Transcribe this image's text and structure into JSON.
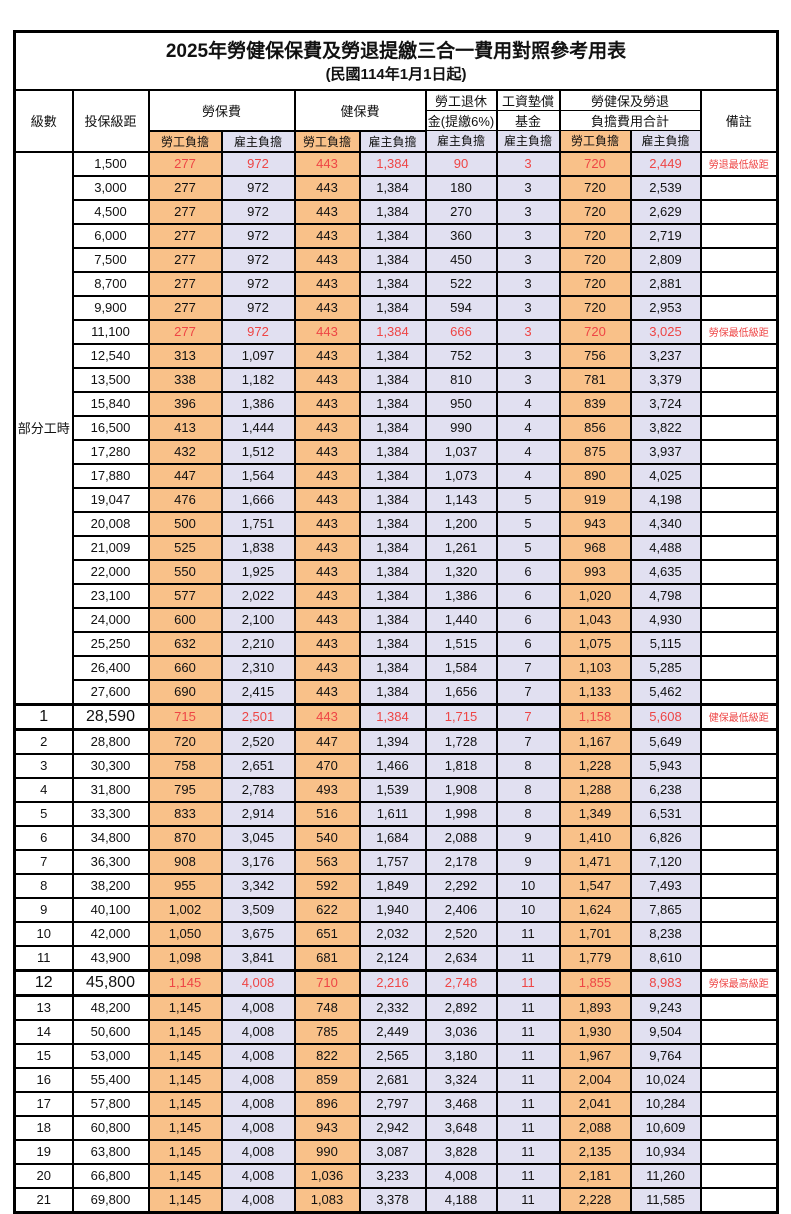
{
  "title": "2025年勞健保保費及勞退提繳三合一費用對照參考用表",
  "subtitle": "(民國114年1月1日起)",
  "colors": {
    "employee_column_bg": "#f9c189",
    "employer_column_bg": "#e1e0f1",
    "highlight_red": "#ee4545",
    "grid": "#000000"
  },
  "table": {
    "part_time_label": "部分工時",
    "header": {
      "level": "級數",
      "bracket": "投保級距",
      "labor_ins": "勞保費",
      "health_ins": "健保費",
      "pension_line1": "勞工退休",
      "pension_line2": "金(提繳6%)",
      "wage_fund_line1": "工資墊償",
      "wage_fund_line2": "基金",
      "total_line1": "勞健保及勞退",
      "total_line2": "負擔費用合計",
      "remark": "備註",
      "employee": "勞工負擔",
      "employer": "雇主負擔"
    },
    "value_columns": [
      "勞保費-勞工負擔",
      "勞保費-雇主負擔",
      "健保費-勞工負擔",
      "健保費-雇主負擔",
      "勞工退休金(提繳6%)-雇主負擔",
      "工資墊償基金-雇主負擔",
      "合計-勞工負擔",
      "合計-雇主負擔"
    ],
    "rows": [
      {
        "level": "",
        "bracket": "1,500",
        "v": [
          "277",
          "972",
          "443",
          "1,384",
          "90",
          "3",
          "720",
          "2,449"
        ],
        "remark": "勞退最低級距",
        "red": true
      },
      {
        "level": "",
        "bracket": "3,000",
        "v": [
          "277",
          "972",
          "443",
          "1,384",
          "180",
          "3",
          "720",
          "2,539"
        ]
      },
      {
        "level": "",
        "bracket": "4,500",
        "v": [
          "277",
          "972",
          "443",
          "1,384",
          "270",
          "3",
          "720",
          "2,629"
        ]
      },
      {
        "level": "",
        "bracket": "6,000",
        "v": [
          "277",
          "972",
          "443",
          "1,384",
          "360",
          "3",
          "720",
          "2,719"
        ]
      },
      {
        "level": "",
        "bracket": "7,500",
        "v": [
          "277",
          "972",
          "443",
          "1,384",
          "450",
          "3",
          "720",
          "2,809"
        ]
      },
      {
        "level": "",
        "bracket": "8,700",
        "v": [
          "277",
          "972",
          "443",
          "1,384",
          "522",
          "3",
          "720",
          "2,881"
        ]
      },
      {
        "level": "",
        "bracket": "9,900",
        "v": [
          "277",
          "972",
          "443",
          "1,384",
          "594",
          "3",
          "720",
          "2,953"
        ]
      },
      {
        "level": "",
        "bracket": "11,100",
        "v": [
          "277",
          "972",
          "443",
          "1,384",
          "666",
          "3",
          "720",
          "3,025"
        ],
        "remark": "勞保最低級距",
        "red": true
      },
      {
        "level": "",
        "bracket": "12,540",
        "v": [
          "313",
          "1,097",
          "443",
          "1,384",
          "752",
          "3",
          "756",
          "3,237"
        ]
      },
      {
        "level": "",
        "bracket": "13,500",
        "v": [
          "338",
          "1,182",
          "443",
          "1,384",
          "810",
          "3",
          "781",
          "3,379"
        ]
      },
      {
        "level": "",
        "bracket": "15,840",
        "v": [
          "396",
          "1,386",
          "443",
          "1,384",
          "950",
          "4",
          "839",
          "3,724"
        ]
      },
      {
        "level": "",
        "bracket": "16,500",
        "v": [
          "413",
          "1,444",
          "443",
          "1,384",
          "990",
          "4",
          "856",
          "3,822"
        ]
      },
      {
        "level": "",
        "bracket": "17,280",
        "v": [
          "432",
          "1,512",
          "443",
          "1,384",
          "1,037",
          "4",
          "875",
          "3,937"
        ]
      },
      {
        "level": "",
        "bracket": "17,880",
        "v": [
          "447",
          "1,564",
          "443",
          "1,384",
          "1,073",
          "4",
          "890",
          "4,025"
        ]
      },
      {
        "level": "",
        "bracket": "19,047",
        "v": [
          "476",
          "1,666",
          "443",
          "1,384",
          "1,143",
          "5",
          "919",
          "4,198"
        ]
      },
      {
        "level": "",
        "bracket": "20,008",
        "v": [
          "500",
          "1,751",
          "443",
          "1,384",
          "1,200",
          "5",
          "943",
          "4,340"
        ]
      },
      {
        "level": "",
        "bracket": "21,009",
        "v": [
          "525",
          "1,838",
          "443",
          "1,384",
          "1,261",
          "5",
          "968",
          "4,488"
        ]
      },
      {
        "level": "",
        "bracket": "22,000",
        "v": [
          "550",
          "1,925",
          "443",
          "1,384",
          "1,320",
          "6",
          "993",
          "4,635"
        ]
      },
      {
        "level": "",
        "bracket": "23,100",
        "v": [
          "577",
          "2,022",
          "443",
          "1,384",
          "1,386",
          "6",
          "1,020",
          "4,798"
        ]
      },
      {
        "level": "",
        "bracket": "24,000",
        "v": [
          "600",
          "2,100",
          "443",
          "1,384",
          "1,440",
          "6",
          "1,043",
          "4,930"
        ]
      },
      {
        "level": "",
        "bracket": "25,250",
        "v": [
          "632",
          "2,210",
          "443",
          "1,384",
          "1,515",
          "6",
          "1,075",
          "5,115"
        ]
      },
      {
        "level": "",
        "bracket": "26,400",
        "v": [
          "660",
          "2,310",
          "443",
          "1,384",
          "1,584",
          "7",
          "1,103",
          "5,285"
        ]
      },
      {
        "level": "",
        "bracket": "27,600",
        "v": [
          "690",
          "2,415",
          "443",
          "1,384",
          "1,656",
          "7",
          "1,133",
          "5,462"
        ]
      },
      {
        "level": "1",
        "bracket": "28,590",
        "v": [
          "715",
          "2,501",
          "443",
          "1,384",
          "1,715",
          "7",
          "1,158",
          "5,608"
        ],
        "remark": "健保最低級距",
        "red": true,
        "big": true,
        "emph": true
      },
      {
        "level": "2",
        "bracket": "28,800",
        "v": [
          "720",
          "2,520",
          "447",
          "1,394",
          "1,728",
          "7",
          "1,167",
          "5,649"
        ]
      },
      {
        "level": "3",
        "bracket": "30,300",
        "v": [
          "758",
          "2,651",
          "470",
          "1,466",
          "1,818",
          "8",
          "1,228",
          "5,943"
        ]
      },
      {
        "level": "4",
        "bracket": "31,800",
        "v": [
          "795",
          "2,783",
          "493",
          "1,539",
          "1,908",
          "8",
          "1,288",
          "6,238"
        ]
      },
      {
        "level": "5",
        "bracket": "33,300",
        "v": [
          "833",
          "2,914",
          "516",
          "1,611",
          "1,998",
          "8",
          "1,349",
          "6,531"
        ]
      },
      {
        "level": "6",
        "bracket": "34,800",
        "v": [
          "870",
          "3,045",
          "540",
          "1,684",
          "2,088",
          "9",
          "1,410",
          "6,826"
        ]
      },
      {
        "level": "7",
        "bracket": "36,300",
        "v": [
          "908",
          "3,176",
          "563",
          "1,757",
          "2,178",
          "9",
          "1,471",
          "7,120"
        ]
      },
      {
        "level": "8",
        "bracket": "38,200",
        "v": [
          "955",
          "3,342",
          "592",
          "1,849",
          "2,292",
          "10",
          "1,547",
          "7,493"
        ]
      },
      {
        "level": "9",
        "bracket": "40,100",
        "v": [
          "1,002",
          "3,509",
          "622",
          "1,940",
          "2,406",
          "10",
          "1,624",
          "7,865"
        ]
      },
      {
        "level": "10",
        "bracket": "42,000",
        "v": [
          "1,050",
          "3,675",
          "651",
          "2,032",
          "2,520",
          "11",
          "1,701",
          "8,238"
        ]
      },
      {
        "level": "11",
        "bracket": "43,900",
        "v": [
          "1,098",
          "3,841",
          "681",
          "2,124",
          "2,634",
          "11",
          "1,779",
          "8,610"
        ]
      },
      {
        "level": "12",
        "bracket": "45,800",
        "v": [
          "1,145",
          "4,008",
          "710",
          "2,216",
          "2,748",
          "11",
          "1,855",
          "8,983"
        ],
        "remark": "勞保最高級距",
        "red": true,
        "big": true,
        "emph": true
      },
      {
        "level": "13",
        "bracket": "48,200",
        "v": [
          "1,145",
          "4,008",
          "748",
          "2,332",
          "2,892",
          "11",
          "1,893",
          "9,243"
        ]
      },
      {
        "level": "14",
        "bracket": "50,600",
        "v": [
          "1,145",
          "4,008",
          "785",
          "2,449",
          "3,036",
          "11",
          "1,930",
          "9,504"
        ]
      },
      {
        "level": "15",
        "bracket": "53,000",
        "v": [
          "1,145",
          "4,008",
          "822",
          "2,565",
          "3,180",
          "11",
          "1,967",
          "9,764"
        ]
      },
      {
        "level": "16",
        "bracket": "55,400",
        "v": [
          "1,145",
          "4,008",
          "859",
          "2,681",
          "3,324",
          "11",
          "2,004",
          "10,024"
        ]
      },
      {
        "level": "17",
        "bracket": "57,800",
        "v": [
          "1,145",
          "4,008",
          "896",
          "2,797",
          "3,468",
          "11",
          "2,041",
          "10,284"
        ]
      },
      {
        "level": "18",
        "bracket": "60,800",
        "v": [
          "1,145",
          "4,008",
          "943",
          "2,942",
          "3,648",
          "11",
          "2,088",
          "10,609"
        ]
      },
      {
        "level": "19",
        "bracket": "63,800",
        "v": [
          "1,145",
          "4,008",
          "990",
          "3,087",
          "3,828",
          "11",
          "2,135",
          "10,934"
        ]
      },
      {
        "level": "20",
        "bracket": "66,800",
        "v": [
          "1,145",
          "4,008",
          "1,036",
          "3,233",
          "4,008",
          "11",
          "2,181",
          "11,260"
        ]
      },
      {
        "level": "21",
        "bracket": "69,800",
        "v": [
          "1,145",
          "4,008",
          "1,083",
          "3,378",
          "4,188",
          "11",
          "2,228",
          "11,585"
        ]
      }
    ]
  }
}
